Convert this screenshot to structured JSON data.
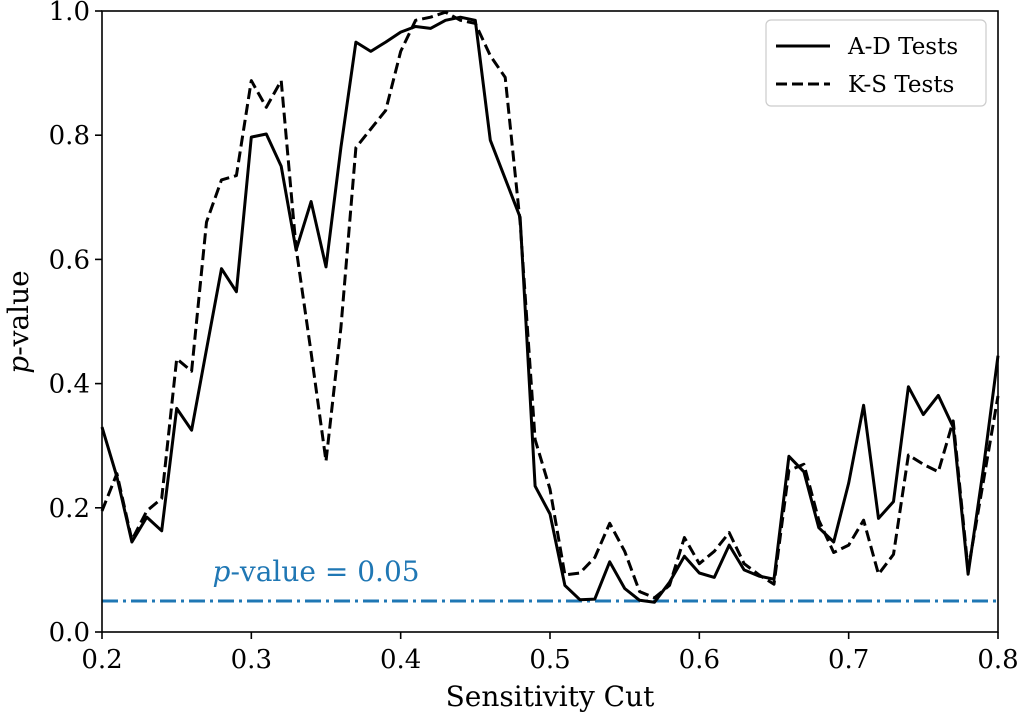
{
  "chart_data": {
    "type": "line",
    "title": "",
    "xlabel": "Sensitivity Cut",
    "ylabel": "p-value",
    "ylabel_italic_part": "p",
    "ylabel_rest": "-value",
    "xlim": [
      0.2,
      0.8
    ],
    "ylim": [
      0.0,
      1.0
    ],
    "xticks": [
      0.2,
      0.3,
      0.4,
      0.5,
      0.6,
      0.7,
      0.8
    ],
    "xtick_labels": [
      "0.2",
      "0.3",
      "0.4",
      "0.5",
      "0.6",
      "0.7",
      "0.8"
    ],
    "yticks": [
      0.0,
      0.2,
      0.4,
      0.6,
      0.8,
      1.0
    ],
    "ytick_labels": [
      "0.0",
      "0.2",
      "0.4",
      "0.6",
      "0.8",
      "1.0"
    ],
    "legend_position": "top-right",
    "series": [
      {
        "name": "A-D Tests",
        "style": "solid",
        "color": "#000000",
        "x": [
          0.2,
          0.21,
          0.22,
          0.23,
          0.24,
          0.25,
          0.26,
          0.27,
          0.28,
          0.29,
          0.3,
          0.31,
          0.32,
          0.33,
          0.34,
          0.35,
          0.36,
          0.37,
          0.38,
          0.39,
          0.4,
          0.41,
          0.42,
          0.43,
          0.44,
          0.45,
          0.46,
          0.47,
          0.48,
          0.49,
          0.5,
          0.51,
          0.52,
          0.53,
          0.54,
          0.55,
          0.56,
          0.57,
          0.58,
          0.59,
          0.6,
          0.61,
          0.62,
          0.63,
          0.64,
          0.65,
          0.66,
          0.67,
          0.68,
          0.69,
          0.7,
          0.71,
          0.72,
          0.73,
          0.74,
          0.75,
          0.76,
          0.77,
          0.78,
          0.79,
          0.8
        ],
        "y": [
          0.33,
          0.25,
          0.145,
          0.185,
          0.163,
          0.36,
          0.325,
          0.455,
          0.585,
          0.548,
          0.797,
          0.802,
          0.75,
          0.615,
          0.693,
          0.588,
          0.78,
          0.95,
          0.935,
          0.95,
          0.966,
          0.975,
          0.972,
          0.985,
          0.99,
          0.985,
          0.792,
          0.73,
          0.668,
          0.235,
          0.19,
          0.075,
          0.052,
          0.053,
          0.113,
          0.07,
          0.051,
          0.048,
          0.08,
          0.122,
          0.095,
          0.088,
          0.14,
          0.1,
          0.09,
          0.085,
          0.283,
          0.258,
          0.168,
          0.145,
          0.24,
          0.365,
          0.183,
          0.21,
          0.395,
          0.35,
          0.381,
          0.33,
          0.093,
          0.26,
          0.445
        ]
      },
      {
        "name": "K-S Tests",
        "style": "dashed",
        "color": "#000000",
        "x": [
          0.2,
          0.21,
          0.22,
          0.23,
          0.24,
          0.25,
          0.26,
          0.27,
          0.28,
          0.29,
          0.3,
          0.31,
          0.32,
          0.33,
          0.34,
          0.35,
          0.36,
          0.37,
          0.38,
          0.39,
          0.4,
          0.41,
          0.42,
          0.43,
          0.44,
          0.45,
          0.46,
          0.47,
          0.48,
          0.49,
          0.5,
          0.51,
          0.52,
          0.53,
          0.54,
          0.55,
          0.56,
          0.57,
          0.58,
          0.59,
          0.6,
          0.61,
          0.62,
          0.63,
          0.64,
          0.65,
          0.66,
          0.67,
          0.68,
          0.69,
          0.7,
          0.71,
          0.72,
          0.73,
          0.74,
          0.75,
          0.76,
          0.77,
          0.78,
          0.79,
          0.8
        ],
        "y": [
          0.195,
          0.255,
          0.148,
          0.195,
          0.215,
          0.44,
          0.42,
          0.66,
          0.728,
          0.735,
          0.888,
          0.845,
          0.888,
          0.618,
          0.45,
          0.275,
          0.49,
          0.78,
          0.81,
          0.84,
          0.935,
          0.985,
          0.99,
          0.998,
          0.985,
          0.98,
          0.928,
          0.893,
          0.66,
          0.31,
          0.23,
          0.092,
          0.095,
          0.12,
          0.175,
          0.13,
          0.065,
          0.055,
          0.075,
          0.152,
          0.11,
          0.13,
          0.16,
          0.11,
          0.092,
          0.077,
          0.26,
          0.27,
          0.18,
          0.128,
          0.14,
          0.18,
          0.093,
          0.125,
          0.285,
          0.27,
          0.258,
          0.34,
          0.1,
          0.24,
          0.38
        ]
      }
    ],
    "reference_line": {
      "y": 0.05,
      "style": "dash-dot",
      "color": "#1f77b4",
      "label_italic": "p",
      "label_rest": "-value = 0.05",
      "label_x": 0.274,
      "label_y": 0.082
    }
  }
}
